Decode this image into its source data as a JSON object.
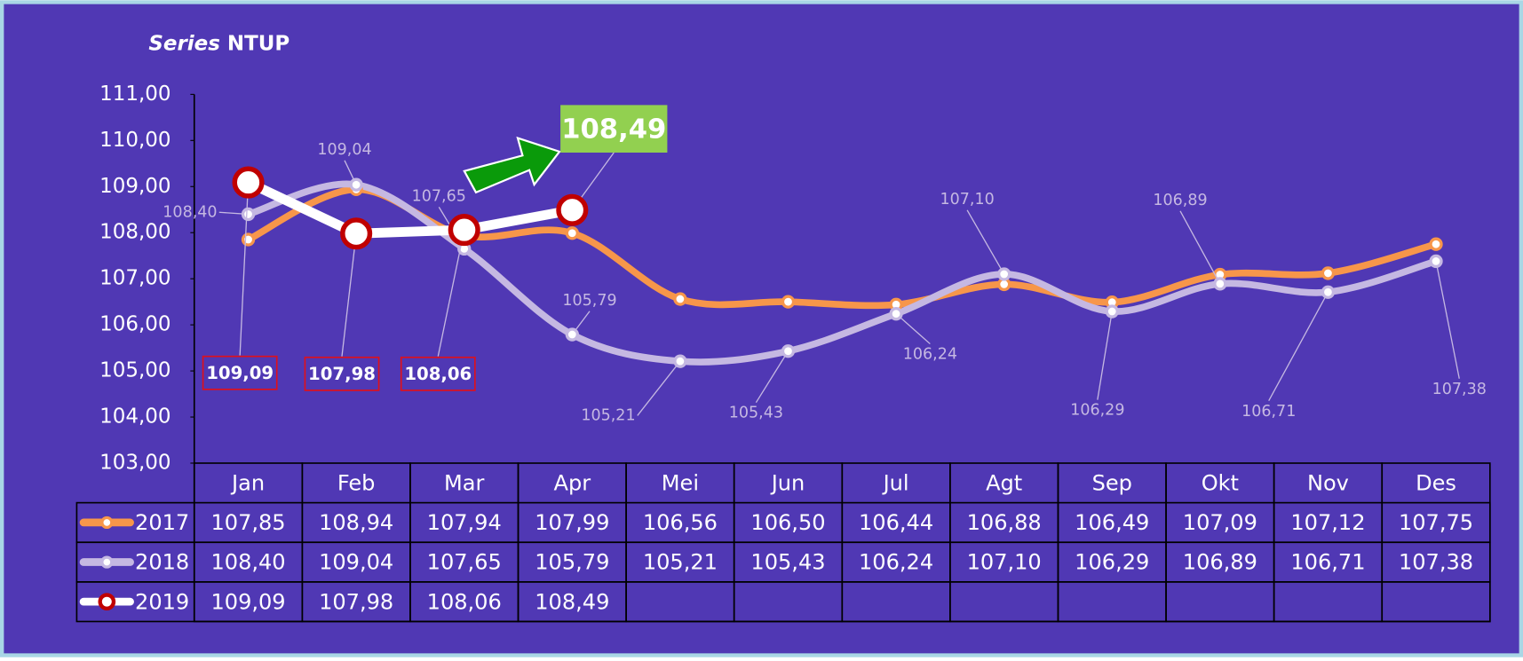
{
  "chart_data": {
    "type": "line",
    "title_prefix": "Series",
    "title": "NTUP",
    "categories": [
      "Jan",
      "Feb",
      "Mar",
      "Apr",
      "Mei",
      "Jun",
      "Jul",
      "Agt",
      "Sep",
      "Okt",
      "Nov",
      "Des"
    ],
    "ylim": [
      103,
      111
    ],
    "yticks": [
      {
        "value": 103,
        "label": "103,00"
      },
      {
        "value": 104,
        "label": "104,00"
      },
      {
        "value": 105,
        "label": "105,00"
      },
      {
        "value": 106,
        "label": "106,00"
      },
      {
        "value": 107,
        "label": "107,00"
      },
      {
        "value": 108,
        "label": "108,00"
      },
      {
        "value": 109,
        "label": "109,00"
      },
      {
        "value": 110,
        "label": "110,00"
      },
      {
        "value": 111,
        "label": "111,00"
      }
    ],
    "data_table": true,
    "series": [
      {
        "name": "2017",
        "color": "#F7964A",
        "smooth": true,
        "data_labels": false,
        "values": [
          107.85,
          108.94,
          107.94,
          107.99,
          106.56,
          106.5,
          106.44,
          106.88,
          106.49,
          107.09,
          107.12,
          107.75
        ],
        "value_labels": [
          "107,85",
          "108,94",
          "107,94",
          "107,99",
          "106,56",
          "106,50",
          "106,44",
          "106,88",
          "106,49",
          "107,09",
          "107,12",
          "107,75"
        ]
      },
      {
        "name": "2018",
        "color": "#C5B8E2",
        "smooth": true,
        "data_labels": true,
        "values": [
          108.4,
          109.04,
          107.65,
          105.79,
          105.21,
          105.43,
          106.24,
          107.1,
          106.29,
          106.89,
          106.71,
          107.38
        ],
        "value_labels": [
          "108,40",
          "109,04",
          "107,65",
          "105,79",
          "105,21",
          "105,43",
          "106,24",
          "107,10",
          "106,29",
          "106,89",
          "106,71",
          "107,38"
        ]
      },
      {
        "name": "2019",
        "color": "#FFFFFF",
        "marker_color": "#C00000",
        "smooth": false,
        "data_labels": true,
        "values": [
          109.09,
          107.98,
          108.06,
          108.49,
          null,
          null,
          null,
          null,
          null,
          null,
          null,
          null
        ],
        "value_labels": [
          "109,09",
          "107,98",
          "108,06",
          "108,49",
          null,
          null,
          null,
          null,
          null,
          null,
          null,
          null
        ]
      }
    ]
  }
}
